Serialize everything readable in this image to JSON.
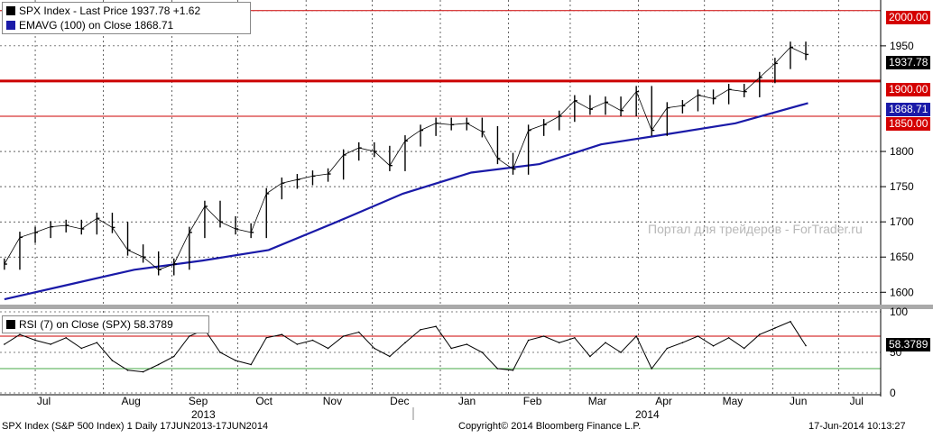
{
  "colors": {
    "price": "#000000",
    "ema": "#1a1aa8",
    "level_line": "#cc0000",
    "rsi_line": "#000000",
    "rsi_over": "#f0a0a0",
    "rsi_under": "#44aa44",
    "grid": "#000000"
  },
  "legend": {
    "main_line1": "SPX Index - Last Price 1937.78 +1.62",
    "main_line2": "EMAVG (100) on Close 1868.71",
    "rsi": "RSI (7) on Close (SPX) 58.3789"
  },
  "tags": {
    "level_2000": "2000.00",
    "last_price": "1937.78",
    "level_1900": "1900.00",
    "ema_value": "1868.71",
    "level_1850": "1850.00",
    "rsi_value": "58.3789"
  },
  "years": [
    "2013",
    "2014"
  ],
  "footer": {
    "left": "SPX Index (S&P 500 Index) 1 Daily 17JUN2013-17JUN2014",
    "center": "Copyright© 2014 Bloomberg Finance L.P.",
    "right": "17-Jun-2014 10:13:27"
  },
  "watermark": "Портал для трейдеров - ForTrader.ru",
  "chart_data": [
    {
      "type": "line",
      "title": "",
      "x_axis": [
        "Jul",
        "Aug",
        "Sep",
        "Oct",
        "Nov",
        "Dec",
        "Jan",
        "Feb",
        "Mar",
        "Apr",
        "May",
        "Jun",
        "Jul"
      ],
      "y_ticks": [
        1600,
        1650,
        1700,
        1750,
        1800,
        1950
      ],
      "ylim": [
        1585,
        2010
      ],
      "horizontal_levels": [
        2000,
        1900,
        1850
      ],
      "grid": true,
      "series": [
        {
          "name": "SPX Index - Last Price",
          "x": [
            "2013-06-17",
            "2013-06-24",
            "2013-07-01",
            "2013-07-08",
            "2013-07-15",
            "2013-07-22",
            "2013-07-29",
            "2013-08-05",
            "2013-08-12",
            "2013-08-19",
            "2013-08-26",
            "2013-09-02",
            "2013-09-09",
            "2013-09-16",
            "2013-09-23",
            "2013-09-30",
            "2013-10-07",
            "2013-10-14",
            "2013-10-21",
            "2013-10-28",
            "2013-11-04",
            "2013-11-11",
            "2013-11-18",
            "2013-11-25",
            "2013-12-02",
            "2013-12-09",
            "2013-12-16",
            "2013-12-23",
            "2013-12-30",
            "2014-01-06",
            "2014-01-13",
            "2014-01-20",
            "2014-01-27",
            "2014-02-03",
            "2014-02-10",
            "2014-02-17",
            "2014-02-24",
            "2014-03-03",
            "2014-03-10",
            "2014-03-17",
            "2014-03-24",
            "2014-03-31",
            "2014-04-07",
            "2014-04-14",
            "2014-04-21",
            "2014-04-28",
            "2014-05-05",
            "2014-05-12",
            "2014-05-19",
            "2014-05-26",
            "2014-06-02",
            "2014-06-09",
            "2014-06-16"
          ],
          "values": [
            1640,
            1678,
            1685,
            1693,
            1695,
            1690,
            1705,
            1692,
            1660,
            1650,
            1632,
            1640,
            1685,
            1722,
            1700,
            1690,
            1685,
            1740,
            1755,
            1760,
            1765,
            1768,
            1795,
            1805,
            1800,
            1780,
            1815,
            1830,
            1840,
            1838,
            1840,
            1828,
            1790,
            1775,
            1830,
            1838,
            1850,
            1872,
            1860,
            1870,
            1858,
            1885,
            1830,
            1862,
            1865,
            1880,
            1875,
            1888,
            1885,
            1905,
            1925,
            1948,
            1937.78
          ]
        },
        {
          "name": "EMAVG (100) on Close",
          "x": [
            "2013-06-17",
            "2013-07-15",
            "2013-08-15",
            "2013-09-15",
            "2013-10-15",
            "2013-11-15",
            "2013-12-15",
            "2014-01-15",
            "2014-02-15",
            "2014-03-15",
            "2014-04-15",
            "2014-05-15",
            "2014-06-17"
          ],
          "values": [
            1590,
            1610,
            1632,
            1645,
            1660,
            1700,
            1740,
            1770,
            1782,
            1810,
            1825,
            1840,
            1868.71
          ]
        }
      ]
    },
    {
      "type": "line",
      "title": "RSI (7) on Close (SPX)",
      "y_ticks": [
        0,
        50,
        100
      ],
      "ylim": [
        0,
        100
      ],
      "horizontal_levels": [
        70,
        30
      ],
      "grid": true,
      "series": [
        {
          "name": "RSI (7) on Close (SPX)",
          "x": [
            "2013-06-17",
            "2013-06-24",
            "2013-07-01",
            "2013-07-08",
            "2013-07-15",
            "2013-07-22",
            "2013-07-29",
            "2013-08-05",
            "2013-08-12",
            "2013-08-19",
            "2013-08-26",
            "2013-09-02",
            "2013-09-09",
            "2013-09-16",
            "2013-09-23",
            "2013-09-30",
            "2013-10-07",
            "2013-10-14",
            "2013-10-21",
            "2013-10-28",
            "2013-11-04",
            "2013-11-11",
            "2013-11-18",
            "2013-11-25",
            "2013-12-02",
            "2013-12-09",
            "2013-12-16",
            "2013-12-23",
            "2013-12-30",
            "2014-01-06",
            "2014-01-13",
            "2014-01-20",
            "2014-01-27",
            "2014-02-03",
            "2014-02-10",
            "2014-02-17",
            "2014-02-24",
            "2014-03-03",
            "2014-03-10",
            "2014-03-17",
            "2014-03-24",
            "2014-03-31",
            "2014-04-07",
            "2014-04-14",
            "2014-04-21",
            "2014-04-28",
            "2014-05-05",
            "2014-05-12",
            "2014-05-19",
            "2014-05-26",
            "2014-06-02",
            "2014-06-09",
            "2014-06-16"
          ],
          "values": [
            60,
            72,
            65,
            60,
            68,
            55,
            62,
            40,
            28,
            26,
            35,
            45,
            70,
            78,
            50,
            40,
            35,
            68,
            72,
            60,
            65,
            55,
            70,
            75,
            55,
            45,
            62,
            78,
            82,
            55,
            60,
            50,
            30,
            28,
            65,
            70,
            62,
            68,
            45,
            62,
            50,
            70,
            30,
            55,
            62,
            70,
            58,
            68,
            55,
            72,
            80,
            88,
            58.3789
          ]
        }
      ]
    }
  ]
}
